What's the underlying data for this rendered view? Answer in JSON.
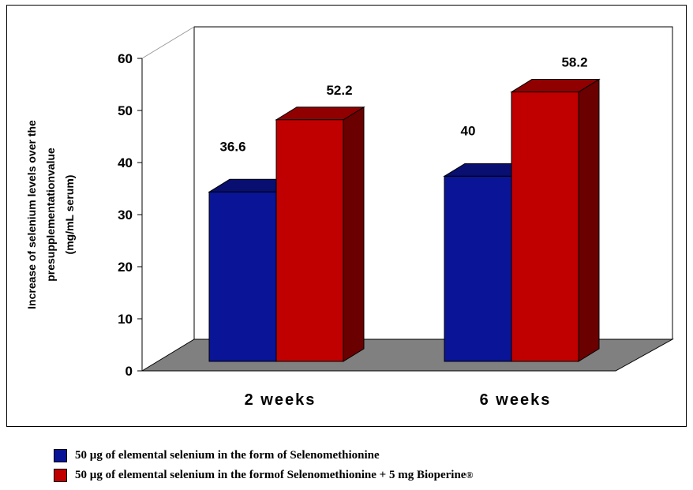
{
  "chart_data": {
    "type": "bar",
    "title": "",
    "ylabel": [
      "Increase of selenium levels over the",
      "presupplementationvalue",
      "(mg/mL serum)"
    ],
    "xlabel": "",
    "ylim": [
      0,
      60
    ],
    "yticks": [
      0,
      10,
      20,
      30,
      40,
      50,
      60
    ],
    "categories": [
      "2 weeks",
      "6 weeks"
    ],
    "series": [
      {
        "name": "50 µg of elemental selenium in the form of Selenomethionine",
        "values": [
          36.6,
          40
        ],
        "labels": [
          "36.6",
          "40"
        ],
        "color": "#0a1496"
      },
      {
        "name": "50 µg of elemental selenium in the formof Selenomethionine + 5 mg Bioperine",
        "name_sup": "®",
        "values": [
          52.2,
          58.2
        ],
        "labels": [
          "52.2",
          "58.2"
        ],
        "color": "#c00000"
      }
    ],
    "floor_color": "#808080",
    "three_d": true
  }
}
